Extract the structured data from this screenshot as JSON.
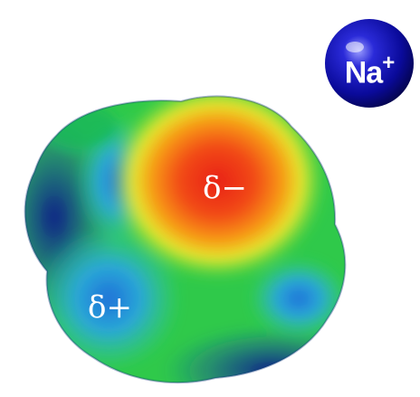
{
  "ion": {
    "symbol": "Na",
    "charge": "+"
  },
  "surface": {
    "negative_label": "δ−",
    "positive_label": "δ+"
  },
  "colors": {
    "background": "#ffffff",
    "ion_sphere": "#0a0a9a",
    "potential_negative": "#e8201a",
    "potential_mid": "#33d23a",
    "potential_positive": "#122a8c"
  }
}
